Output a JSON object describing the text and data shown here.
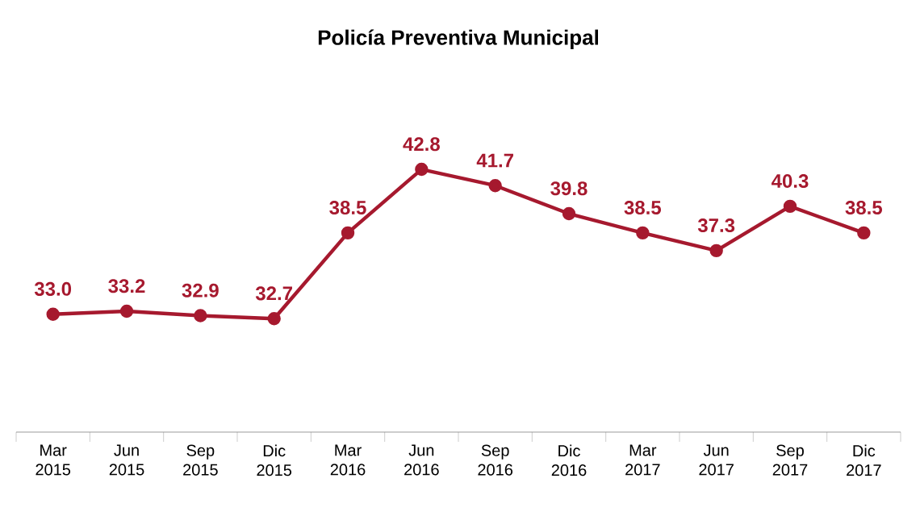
{
  "chart_data": {
    "type": "line",
    "title": "Policía Preventiva Municipal",
    "categories": [
      "Mar 2015",
      "Jun 2015",
      "Sep 2015",
      "Dic 2015",
      "Mar 2016",
      "Jun 2016",
      "Sep 2016",
      "Dic 2016",
      "Mar 2017",
      "Jun 2017",
      "Sep 2017",
      "Dic 2017"
    ],
    "series": [
      {
        "color": "#a6192e",
        "values": [
          33.0,
          33.2,
          32.9,
          32.7,
          38.5,
          42.8,
          41.7,
          39.8,
          38.5,
          37.3,
          40.3,
          38.5
        ],
        "value_labels": [
          "33.0",
          "33.2",
          "32.9",
          "32.7",
          "38.5",
          "42.8",
          "41.7",
          "39.8",
          "38.5",
          "37.3",
          "40.3",
          "38.5"
        ]
      }
    ],
    "tick_labels": "x",
    "marker": "circle",
    "line_style": "solid"
  }
}
